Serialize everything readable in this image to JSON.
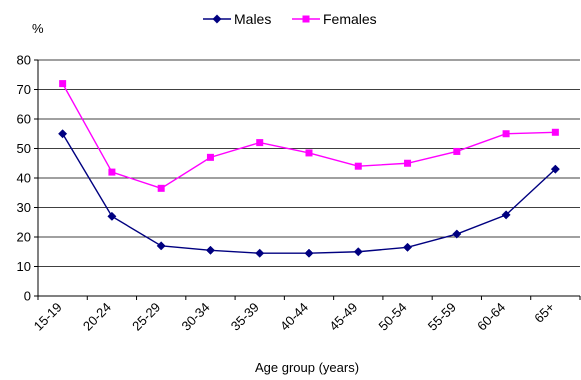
{
  "chart_data": {
    "type": "line",
    "title": "",
    "xlabel": "Age group (years)",
    "ylabel": "%",
    "ylim": [
      0,
      80
    ],
    "yticks": [
      0,
      10,
      20,
      30,
      40,
      50,
      60,
      70,
      80
    ],
    "grid": "horizontal",
    "legend": "top",
    "categories": [
      "15-19",
      "20-24",
      "25-29",
      "30-34",
      "35-39",
      "40-44",
      "45-49",
      "50-54",
      "55-59",
      "60-64",
      "65+"
    ],
    "series": [
      {
        "name": "Males",
        "color": "#000080",
        "marker": "diamond",
        "values": [
          55,
          27,
          17,
          15.5,
          14.5,
          14.5,
          15,
          16.5,
          21,
          27.5,
          43
        ]
      },
      {
        "name": "Females",
        "color": "#FF00FF",
        "marker": "square",
        "values": [
          72,
          42,
          36.5,
          47,
          52,
          48.5,
          44,
          45,
          49,
          55,
          55.5
        ]
      }
    ]
  }
}
